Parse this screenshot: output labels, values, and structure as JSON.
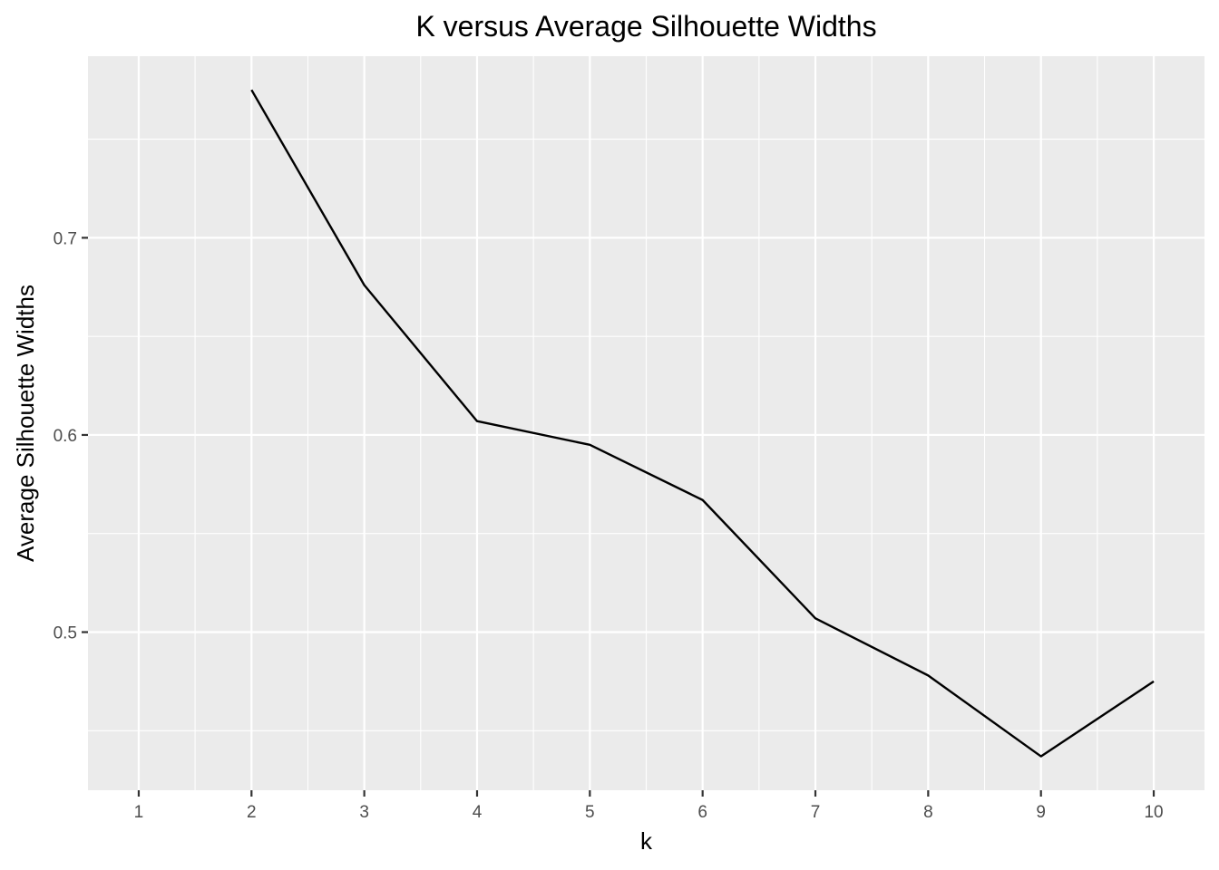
{
  "chart_data": {
    "type": "line",
    "title": "K versus Average Silhouette Widths",
    "xlabel": "k",
    "ylabel": "Average Silhouette Widths",
    "x": [
      2,
      3,
      4,
      5,
      6,
      7,
      8,
      9,
      10
    ],
    "series": [
      {
        "values": [
          0.775,
          0.676,
          0.607,
          0.595,
          0.567,
          0.507,
          0.478,
          0.437,
          0.475
        ]
      }
    ],
    "x_ticks": [
      "1",
      "2",
      "3",
      "4",
      "5",
      "6",
      "7",
      "8",
      "9",
      "10"
    ],
    "y_ticks": [
      "0.5",
      "0.6",
      "0.7"
    ],
    "xlim": [
      0.55,
      10.45
    ],
    "ylim": [
      0.4198,
      0.7921
    ],
    "grid": true,
    "colors": {
      "panel": "#ebebeb",
      "grid": "#ffffff",
      "line": "#000000",
      "tick_text": "#4d4d4d"
    }
  }
}
